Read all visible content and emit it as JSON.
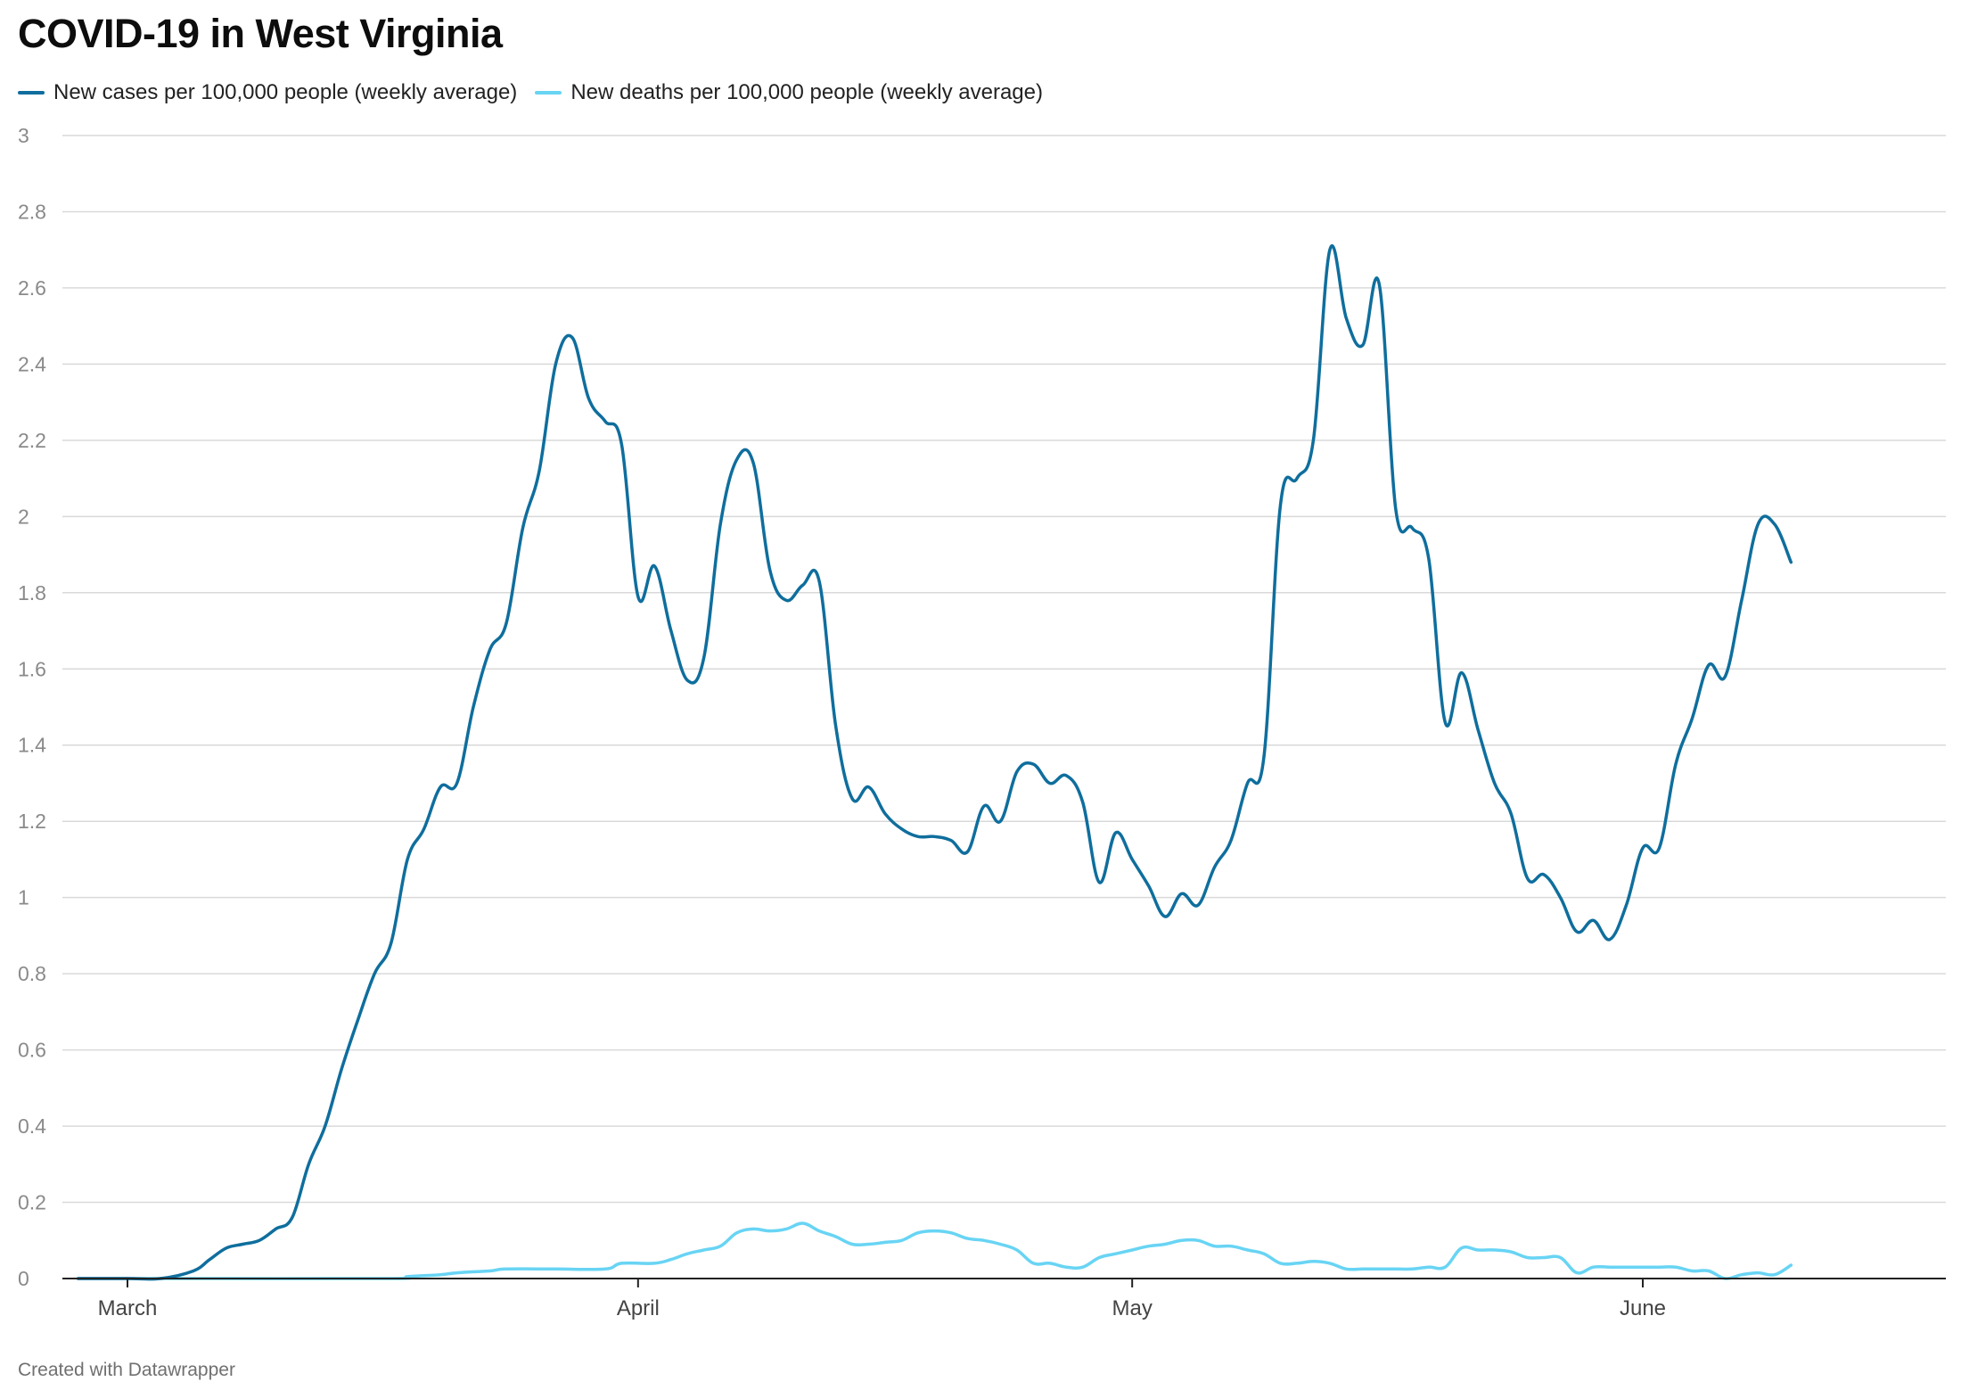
{
  "header": {
    "title": "COVID-19 in West Virginia"
  },
  "footer": {
    "credit": "Created with Datawrapper"
  },
  "colors": {
    "cases": "#0f6e9d",
    "deaths": "#68d4f4",
    "grid": "#d9d9d9",
    "axis": "#222222"
  },
  "chart_data": {
    "type": "line",
    "title": "COVID-19 in West Virginia",
    "xlabel": "",
    "ylabel": "",
    "ylim": [
      0,
      3
    ],
    "y_ticks": [
      0,
      0.2,
      0.4,
      0.6,
      0.8,
      1,
      1.2,
      1.4,
      1.6,
      1.8,
      2,
      2.2,
      2.4,
      2.6,
      2.8,
      3
    ],
    "y_tick_labels": [
      "0",
      "0.2",
      "0.4",
      "0.6",
      "0.8",
      "1",
      "1.2",
      "1.4",
      "1.6",
      "1.8",
      "2",
      "2.2",
      "2.4",
      "2.6",
      "2.8",
      "3"
    ],
    "x_ticks": [
      {
        "label": "March",
        "date": "2020-03-01"
      },
      {
        "label": "April",
        "date": "2020-04-01"
      },
      {
        "label": "May",
        "date": "2020-05-01"
      },
      {
        "label": "June",
        "date": "2020-06-01"
      }
    ],
    "grid": true,
    "legend_position": "top-left",
    "series": [
      {
        "name": "New cases per 100,000 people (weekly average)",
        "points": [
          [
            "2020-02-27",
            0
          ],
          [
            "2020-03-01",
            0
          ],
          [
            "2020-03-03",
            0
          ],
          [
            "2020-03-05",
            0.02
          ],
          [
            "2020-03-06",
            0.05
          ],
          [
            "2020-03-07",
            0.08
          ],
          [
            "2020-03-08",
            0.09
          ],
          [
            "2020-03-09",
            0.1
          ],
          [
            "2020-03-10",
            0.13
          ],
          [
            "2020-03-11",
            0.16
          ],
          [
            "2020-03-12",
            0.3
          ],
          [
            "2020-03-13",
            0.4
          ],
          [
            "2020-03-14",
            0.55
          ],
          [
            "2020-03-15",
            0.68
          ],
          [
            "2020-03-16",
            0.8
          ],
          [
            "2020-03-17",
            0.88
          ],
          [
            "2020-03-18",
            1.1
          ],
          [
            "2020-03-19",
            1.18
          ],
          [
            "2020-03-20",
            1.29
          ],
          [
            "2020-03-21",
            1.3
          ],
          [
            "2020-03-22",
            1.5
          ],
          [
            "2020-03-23",
            1.65
          ],
          [
            "2020-03-24",
            1.72
          ],
          [
            "2020-03-25",
            1.97
          ],
          [
            "2020-03-26",
            2.12
          ],
          [
            "2020-03-27",
            2.4
          ],
          [
            "2020-03-28",
            2.47
          ],
          [
            "2020-03-29",
            2.31
          ],
          [
            "2020-03-30",
            2.25
          ],
          [
            "2020-03-31",
            2.19
          ],
          [
            "2020-04-01",
            1.79
          ],
          [
            "2020-04-02",
            1.87
          ],
          [
            "2020-04-03",
            1.7
          ],
          [
            "2020-04-04",
            1.57
          ],
          [
            "2020-04-05",
            1.63
          ],
          [
            "2020-04-06",
            1.98
          ],
          [
            "2020-04-07",
            2.15
          ],
          [
            "2020-04-08",
            2.14
          ],
          [
            "2020-04-09",
            1.86
          ],
          [
            "2020-04-10",
            1.78
          ],
          [
            "2020-04-11",
            1.82
          ],
          [
            "2020-04-12",
            1.83
          ],
          [
            "2020-04-13",
            1.45
          ],
          [
            "2020-04-14",
            1.26
          ],
          [
            "2020-04-15",
            1.29
          ],
          [
            "2020-04-16",
            1.22
          ],
          [
            "2020-04-17",
            1.18
          ],
          [
            "2020-04-18",
            1.16
          ],
          [
            "2020-04-19",
            1.16
          ],
          [
            "2020-04-20",
            1.15
          ],
          [
            "2020-04-21",
            1.12
          ],
          [
            "2020-04-22",
            1.24
          ],
          [
            "2020-04-23",
            1.2
          ],
          [
            "2020-04-24",
            1.33
          ],
          [
            "2020-04-25",
            1.35
          ],
          [
            "2020-04-26",
            1.3
          ],
          [
            "2020-04-27",
            1.32
          ],
          [
            "2020-04-28",
            1.25
          ],
          [
            "2020-04-29",
            1.04
          ],
          [
            "2020-04-30",
            1.17
          ],
          [
            "2020-05-01",
            1.1
          ],
          [
            "2020-05-02",
            1.03
          ],
          [
            "2020-05-03",
            0.95
          ],
          [
            "2020-05-04",
            1.01
          ],
          [
            "2020-05-05",
            0.98
          ],
          [
            "2020-05-06",
            1.08
          ],
          [
            "2020-05-07",
            1.15
          ],
          [
            "2020-05-08",
            1.3
          ],
          [
            "2020-05-09",
            1.37
          ],
          [
            "2020-05-10",
            2.03
          ],
          [
            "2020-05-11",
            2.1
          ],
          [
            "2020-05-12",
            2.2
          ],
          [
            "2020-05-13",
            2.7
          ],
          [
            "2020-05-14",
            2.52
          ],
          [
            "2020-05-15",
            2.45
          ],
          [
            "2020-05-16",
            2.61
          ],
          [
            "2020-05-17",
            2.02
          ],
          [
            "2020-05-18",
            1.97
          ],
          [
            "2020-05-19",
            1.89
          ],
          [
            "2020-05-20",
            1.46
          ],
          [
            "2020-05-21",
            1.59
          ],
          [
            "2020-05-22",
            1.44
          ],
          [
            "2020-05-23",
            1.3
          ],
          [
            "2020-05-24",
            1.22
          ],
          [
            "2020-05-25",
            1.05
          ],
          [
            "2020-05-26",
            1.06
          ],
          [
            "2020-05-27",
            1.0
          ],
          [
            "2020-05-28",
            0.91
          ],
          [
            "2020-05-29",
            0.94
          ],
          [
            "2020-05-30",
            0.89
          ],
          [
            "2020-05-31",
            0.98
          ],
          [
            "2020-06-01",
            1.13
          ],
          [
            "2020-06-02",
            1.13
          ],
          [
            "2020-06-03",
            1.35
          ],
          [
            "2020-06-04",
            1.47
          ],
          [
            "2020-06-05",
            1.61
          ],
          [
            "2020-06-06",
            1.58
          ],
          [
            "2020-06-07",
            1.78
          ],
          [
            "2020-06-08",
            1.98
          ],
          [
            "2020-06-09",
            1.98
          ],
          [
            "2020-06-10",
            1.88
          ]
        ]
      },
      {
        "name": "New deaths per 100,000 people (weekly average)",
        "points": [
          [
            "2020-02-27",
            0
          ],
          [
            "2020-03-05",
            0
          ],
          [
            "2020-03-17",
            0
          ],
          [
            "2020-03-18",
            0.005
          ],
          [
            "2020-03-20",
            0.01
          ],
          [
            "2020-03-21",
            0.015
          ],
          [
            "2020-03-23",
            0.02
          ],
          [
            "2020-03-24",
            0.025
          ],
          [
            "2020-03-27",
            0.025
          ],
          [
            "2020-03-30",
            0.025
          ],
          [
            "2020-03-31",
            0.04
          ],
          [
            "2020-04-02",
            0.04
          ],
          [
            "2020-04-03",
            0.05
          ],
          [
            "2020-04-04",
            0.065
          ],
          [
            "2020-04-05",
            0.075
          ],
          [
            "2020-04-06",
            0.085
          ],
          [
            "2020-04-07",
            0.12
          ],
          [
            "2020-04-08",
            0.13
          ],
          [
            "2020-04-09",
            0.125
          ],
          [
            "2020-04-10",
            0.13
          ],
          [
            "2020-04-11",
            0.145
          ],
          [
            "2020-04-12",
            0.125
          ],
          [
            "2020-04-13",
            0.11
          ],
          [
            "2020-04-14",
            0.09
          ],
          [
            "2020-04-15",
            0.09
          ],
          [
            "2020-04-16",
            0.095
          ],
          [
            "2020-04-17",
            0.1
          ],
          [
            "2020-04-18",
            0.12
          ],
          [
            "2020-04-19",
            0.125
          ],
          [
            "2020-04-20",
            0.12
          ],
          [
            "2020-04-21",
            0.105
          ],
          [
            "2020-04-22",
            0.1
          ],
          [
            "2020-04-23",
            0.09
          ],
          [
            "2020-04-24",
            0.075
          ],
          [
            "2020-04-25",
            0.04
          ],
          [
            "2020-04-26",
            0.04
          ],
          [
            "2020-04-27",
            0.03
          ],
          [
            "2020-04-28",
            0.03
          ],
          [
            "2020-04-29",
            0.055
          ],
          [
            "2020-04-30",
            0.065
          ],
          [
            "2020-05-01",
            0.075
          ],
          [
            "2020-05-02",
            0.085
          ],
          [
            "2020-05-03",
            0.09
          ],
          [
            "2020-05-04",
            0.1
          ],
          [
            "2020-05-05",
            0.1
          ],
          [
            "2020-05-06",
            0.085
          ],
          [
            "2020-05-07",
            0.085
          ],
          [
            "2020-05-08",
            0.075
          ],
          [
            "2020-05-09",
            0.065
          ],
          [
            "2020-05-10",
            0.04
          ],
          [
            "2020-05-11",
            0.04
          ],
          [
            "2020-05-12",
            0.045
          ],
          [
            "2020-05-13",
            0.04
          ],
          [
            "2020-05-14",
            0.025
          ],
          [
            "2020-05-15",
            0.025
          ],
          [
            "2020-05-16",
            0.025
          ],
          [
            "2020-05-17",
            0.025
          ],
          [
            "2020-05-18",
            0.025
          ],
          [
            "2020-05-19",
            0.03
          ],
          [
            "2020-05-20",
            0.03
          ],
          [
            "2020-05-21",
            0.08
          ],
          [
            "2020-05-22",
            0.075
          ],
          [
            "2020-05-23",
            0.075
          ],
          [
            "2020-05-24",
            0.07
          ],
          [
            "2020-05-25",
            0.055
          ],
          [
            "2020-05-26",
            0.055
          ],
          [
            "2020-05-27",
            0.055
          ],
          [
            "2020-05-28",
            0.015
          ],
          [
            "2020-05-29",
            0.03
          ],
          [
            "2020-05-30",
            0.03
          ],
          [
            "2020-05-31",
            0.03
          ],
          [
            "2020-06-01",
            0.03
          ],
          [
            "2020-06-02",
            0.03
          ],
          [
            "2020-06-03",
            0.03
          ],
          [
            "2020-06-04",
            0.02
          ],
          [
            "2020-06-05",
            0.02
          ],
          [
            "2020-06-06",
            0.0
          ],
          [
            "2020-06-07",
            0.01
          ],
          [
            "2020-06-08",
            0.015
          ],
          [
            "2020-06-09",
            0.01
          ],
          [
            "2020-06-10",
            0.035
          ]
        ]
      }
    ]
  }
}
